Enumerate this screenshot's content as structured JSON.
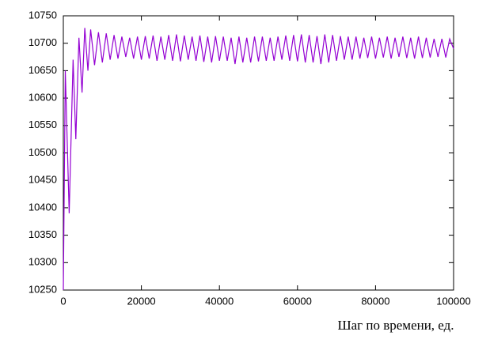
{
  "chart_data": {
    "type": "line",
    "x_label": "Шаг по времени, ед.",
    "x": [
      0,
      500,
      1500,
      2500,
      3200,
      4000,
      4800,
      5500,
      6300,
      7000,
      8000,
      9000,
      10000,
      11000,
      12000,
      13000,
      14000,
      15000,
      16000,
      17000,
      18000,
      19000,
      20000,
      21000,
      22000,
      23000,
      24000,
      25000,
      26000,
      27000,
      28000,
      29000,
      30000,
      31000,
      32000,
      33000,
      34000,
      35000,
      36000,
      37000,
      38000,
      39000,
      40000,
      41000,
      42000,
      43000,
      44000,
      45000,
      46000,
      47000,
      48000,
      49000,
      50000,
      51000,
      52000,
      53000,
      54000,
      55000,
      56000,
      57000,
      58000,
      59000,
      60000,
      61000,
      62000,
      63000,
      64000,
      65000,
      66000,
      67000,
      68000,
      69000,
      70000,
      71000,
      72000,
      73000,
      74000,
      75000,
      76000,
      77000,
      78000,
      79000,
      80000,
      81000,
      82000,
      83000,
      84000,
      85000,
      86000,
      87000,
      88000,
      89000,
      90000,
      91000,
      92000,
      93000,
      94000,
      95000,
      96000,
      97000,
      98000,
      99000,
      100000
    ],
    "series": [
      {
        "color": "#9400d3",
        "values": [
          10250,
          10650,
          10390,
          10670,
          10525,
          10710,
          10610,
          10728,
          10650,
          10725,
          10660,
          10720,
          10665,
          10718,
          10670,
          10715,
          10672,
          10712,
          10675,
          10710,
          10672,
          10712,
          10670,
          10713,
          10672,
          10714,
          10668,
          10712,
          10670,
          10715,
          10668,
          10716,
          10667,
          10714,
          10670,
          10712,
          10668,
          10714,
          10666,
          10712,
          10665,
          10713,
          10668,
          10712,
          10668,
          10710,
          10662,
          10712,
          10665,
          10710,
          10665,
          10712,
          10667,
          10712,
          10668,
          10710,
          10668,
          10712,
          10670,
          10714,
          10668,
          10715,
          10667,
          10716,
          10665,
          10715,
          10665,
          10713,
          10662,
          10716,
          10665,
          10715,
          10668,
          10713,
          10670,
          10712,
          10670,
          10712,
          10672,
          10710,
          10673,
          10712,
          10672,
          10710,
          10674,
          10712,
          10672,
          10710,
          10675,
          10712,
          10673,
          10710,
          10672,
          10712,
          10673,
          10710,
          10674,
          10708,
          10675,
          10708,
          10674,
          10708,
          10690
        ]
      }
    ],
    "xlim": [
      0,
      100000
    ],
    "ylim": [
      10250,
      10750
    ],
    "xticks": [
      0,
      20000,
      40000,
      60000,
      80000,
      100000
    ],
    "yticks": [
      10250,
      10300,
      10350,
      10400,
      10450,
      10500,
      10550,
      10600,
      10650,
      10700,
      10750
    ]
  }
}
